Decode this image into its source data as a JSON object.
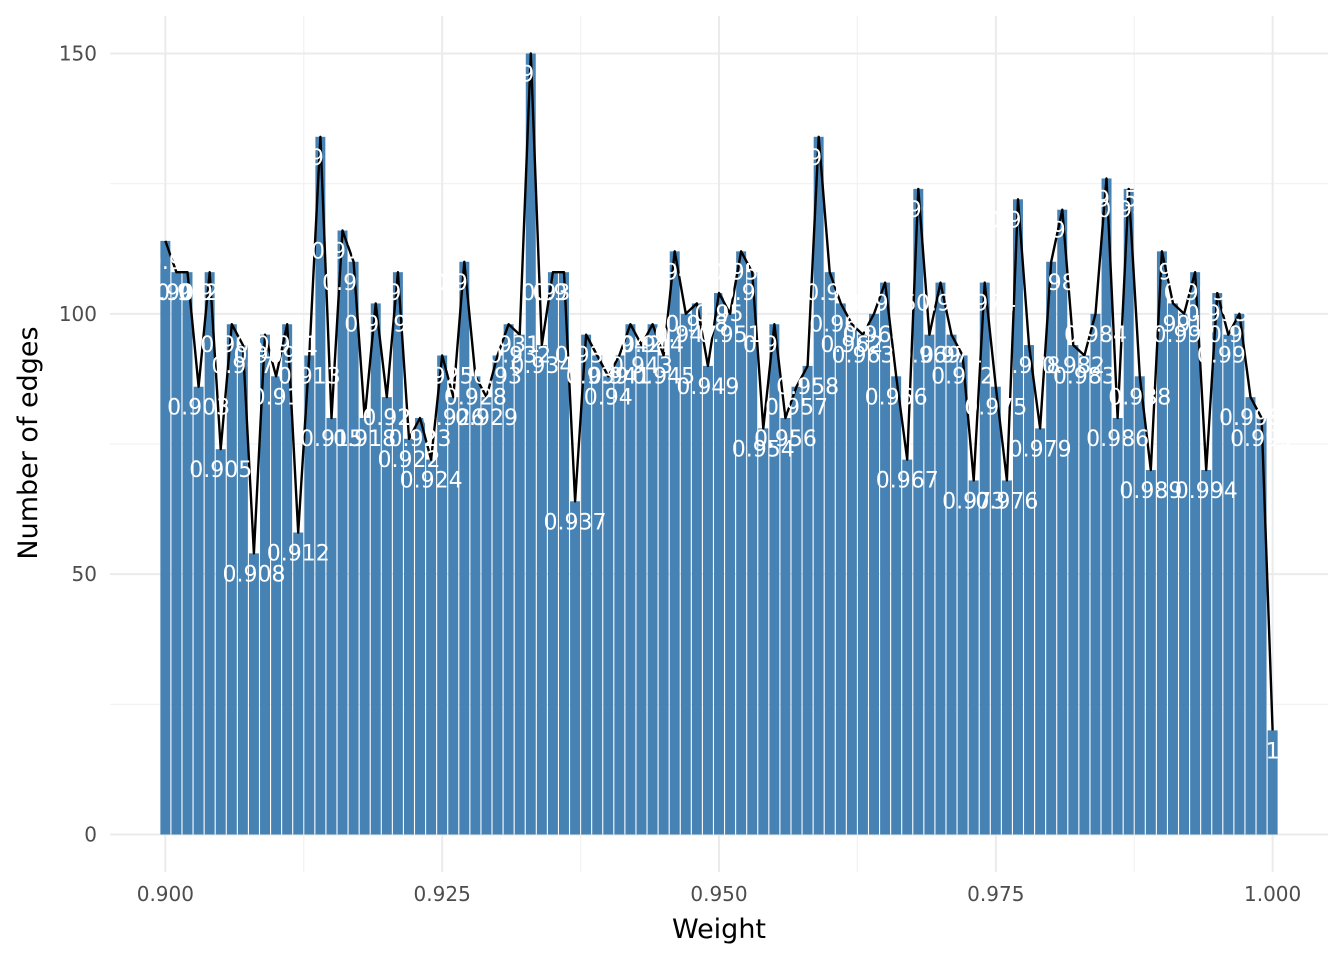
{
  "chart_data": {
    "type": "bar",
    "title": "",
    "xlabel": "Weight",
    "ylabel": "Number of edges",
    "xlim": [
      0.895,
      1.005
    ],
    "ylim": [
      0,
      150
    ],
    "grid": true,
    "legend": "none",
    "x_ticks": [
      {
        "value": 0.9,
        "label": "0.900"
      },
      {
        "value": 0.925,
        "label": "0.925"
      },
      {
        "value": 0.95,
        "label": "0.950"
      },
      {
        "value": 0.975,
        "label": "0.975"
      },
      {
        "value": 1.0,
        "label": "1.000"
      }
    ],
    "y_ticks": [
      {
        "value": 0,
        "label": "0"
      },
      {
        "value": 50,
        "label": "50"
      },
      {
        "value": 100,
        "label": "100"
      },
      {
        "value": 150,
        "label": "150"
      }
    ],
    "x": [
      0.9,
      0.901,
      0.902,
      0.903,
      0.904,
      0.905,
      0.906,
      0.907,
      0.908,
      0.909,
      0.91,
      0.911,
      0.912,
      0.913,
      0.914,
      0.915,
      0.916,
      0.917,
      0.918,
      0.919,
      0.92,
      0.921,
      0.922,
      0.923,
      0.924,
      0.925,
      0.926,
      0.927,
      0.928,
      0.929,
      0.93,
      0.931,
      0.932,
      0.933,
      0.934,
      0.935,
      0.936,
      0.937,
      0.938,
      0.939,
      0.94,
      0.941,
      0.942,
      0.943,
      0.944,
      0.945,
      0.946,
      0.947,
      0.948,
      0.949,
      0.95,
      0.951,
      0.952,
      0.953,
      0.954,
      0.955,
      0.956,
      0.957,
      0.958,
      0.959,
      0.96,
      0.961,
      0.962,
      0.963,
      0.964,
      0.965,
      0.966,
      0.967,
      0.968,
      0.969,
      0.97,
      0.971,
      0.972,
      0.973,
      0.974,
      0.975,
      0.976,
      0.977,
      0.978,
      0.979,
      0.98,
      0.981,
      0.982,
      0.983,
      0.984,
      0.985,
      0.986,
      0.987,
      0.988,
      0.989,
      0.99,
      0.991,
      0.992,
      0.993,
      0.994,
      0.995,
      0.996,
      0.997,
      0.998,
      0.999,
      1.0
    ],
    "values": [
      114,
      108,
      108,
      86,
      108,
      74,
      98,
      94,
      54,
      96,
      88,
      98,
      58,
      92,
      134,
      80,
      116,
      110,
      80,
      102,
      84,
      108,
      76,
      80,
      72,
      92,
      84,
      110,
      88,
      84,
      92,
      98,
      96,
      150,
      94,
      108,
      108,
      64,
      96,
      92,
      88,
      92,
      98,
      94,
      98,
      92,
      112,
      100,
      102,
      90,
      104,
      100,
      112,
      108,
      78,
      98,
      80,
      86,
      90,
      134,
      108,
      102,
      98,
      96,
      100,
      106,
      88,
      72,
      124,
      96,
      106,
      96,
      92,
      68,
      106,
      86,
      68,
      122,
      94,
      78,
      110,
      120,
      94,
      92,
      100,
      126,
      80,
      124,
      88,
      70,
      112,
      102,
      100,
      108,
      70,
      104,
      96,
      100,
      84,
      80,
      20
    ],
    "value_labels": [
      "0.9",
      "0.901",
      "0.902",
      "0.903",
      "0.904",
      "0.905",
      "0.906",
      "0.907",
      "0.908",
      "0.909",
      "0.91",
      "0.911",
      "0.912",
      "0.913",
      "0.914",
      "0.915",
      "0.916",
      "0.917",
      "0.918",
      "0.919",
      "0.92",
      "0.921",
      "0.922",
      "0.923",
      "0.924",
      "0.925",
      "0.926",
      "0.927",
      "0.928",
      "0.929",
      "0.93",
      "0.931",
      "0.932",
      "0.933",
      "0.934",
      "0.935",
      "0.936",
      "0.937",
      "0.938",
      "0.939",
      "0.94",
      "0.941",
      "0.942",
      "0.943",
      "0.944",
      "0.945",
      "0.946",
      "0.947",
      "0.948",
      "0.949",
      "0.95",
      "0.951",
      "0.952",
      "0.953",
      "0.954",
      "0.955",
      "0.956",
      "0.957",
      "0.958",
      "0.959",
      "0.96",
      "0.961",
      "0.962",
      "0.963",
      "0.964",
      "0.965",
      "0.966",
      "0.967",
      "0.968",
      "0.969",
      "0.97",
      "0.971",
      "0.972",
      "0.973",
      "0.974",
      "0.975",
      "0.976",
      "0.977",
      "0.978",
      "0.979",
      "0.98",
      "0.981",
      "0.982",
      "0.983",
      "0.984",
      "0.985",
      "0.986",
      "0.987",
      "0.988",
      "0.989",
      "0.99",
      "0.991",
      "0.992",
      "0.993",
      "0.994",
      "0.995",
      "0.996",
      "0.997",
      "0.998",
      "0.999",
      "1"
    ],
    "overlay": {
      "type": "line",
      "values_same_as_bars": true,
      "color": "#000000"
    },
    "colors": {
      "bar": "#4682b4",
      "line": "#000000",
      "grid_major": "#ebebeb",
      "grid_minor": "#f2f2f2",
      "label": "#ffffff",
      "tick": "#4d4d4d"
    }
  }
}
